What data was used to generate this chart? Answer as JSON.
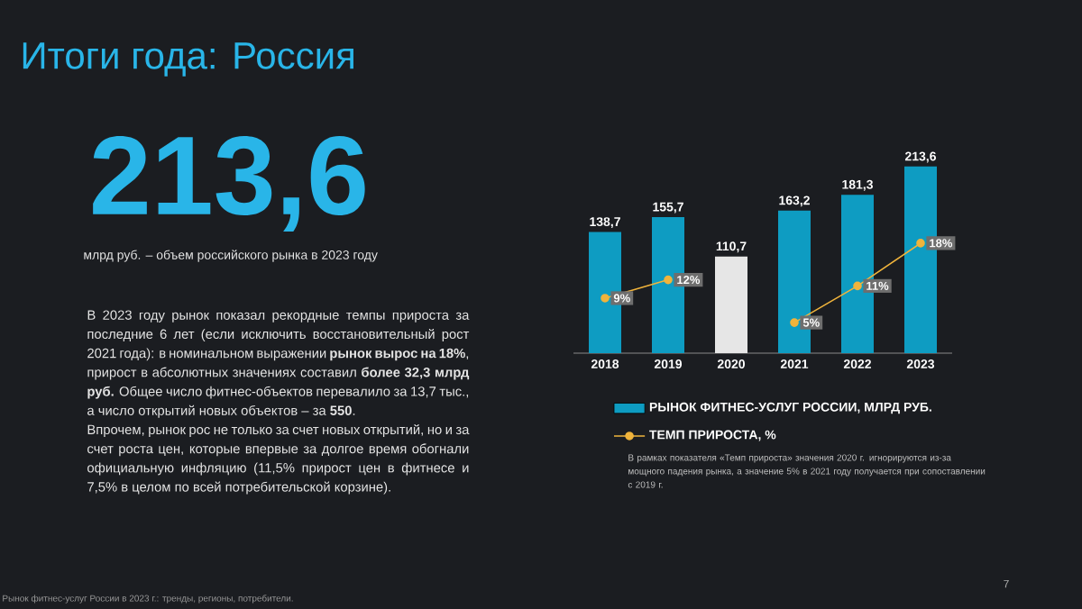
{
  "chart_data": {
    "type": "bar",
    "title": "Итоги года: Россия",
    "subtitle": "млрд руб. – объем российского рынка в 2023 году",
    "categories": [
      "2018",
      "2019",
      "2020",
      "2021",
      "2022",
      "2023"
    ],
    "series": [
      {
        "name": "РЫНОК ФИТНЕС-УСЛУГ РОССИИ, МЛРД РУБ.",
        "colors": [
          "#0e9cc2",
          "#0e9cc2",
          "#e6e6e6",
          "#0e9cc2",
          "#0e9cc2",
          "#0e9cc2"
        ],
        "values": [
          138.7,
          155.7,
          110.7,
          163.2,
          181.3,
          213.6
        ],
        "value_labels": [
          "138,7",
          "155,7",
          "110,7",
          "163,2",
          "181,3",
          "213,6"
        ]
      },
      {
        "name": "ТЕМП ПРИРОСТА, %",
        "type": "line",
        "axis": "y2",
        "color": "#f0b43c",
        "values": [
          9,
          12,
          null,
          5,
          11,
          18
        ],
        "value_labels": [
          "9%",
          "12%",
          null,
          "5%",
          "11%",
          "18%"
        ]
      }
    ],
    "tick_labels": "x",
    "legend": "bottom",
    "marker": "circle",
    "annotations": [
      "213,6",
      "В 2023 году рынок показал рекордные темпы прироста за последние 6 лет (если исключить восстановительный рост 2021 года): в номинальном выражении **рынок вырос на 18%**, прирост в абсолютных значениях составил **более 32,3 млрд руб.** Общее число фитнес-объектов перевалило за 13,7 тыс., а число открытий новых объектов – за **550**.",
      "Впрочем, рынок рос не только за счет новых открытий, но и за счет роста цен, которые впервые за долгое время обогнали официальную инфляцию (11,5% прирост цен в фитнесе и 7,5% в целом по всей потребительской корзине).",
      "В рамках показателя «Темп прироста» значения 2020 г. игнорируются из-за мощного падения рынка, а значение 5% в 2021 году получается при сопоставлении с 2019 г.",
      "Рынок фитнес-услуг России в 2023 г.: тренды, регионы, потребители.",
      "7"
    ]
  }
}
